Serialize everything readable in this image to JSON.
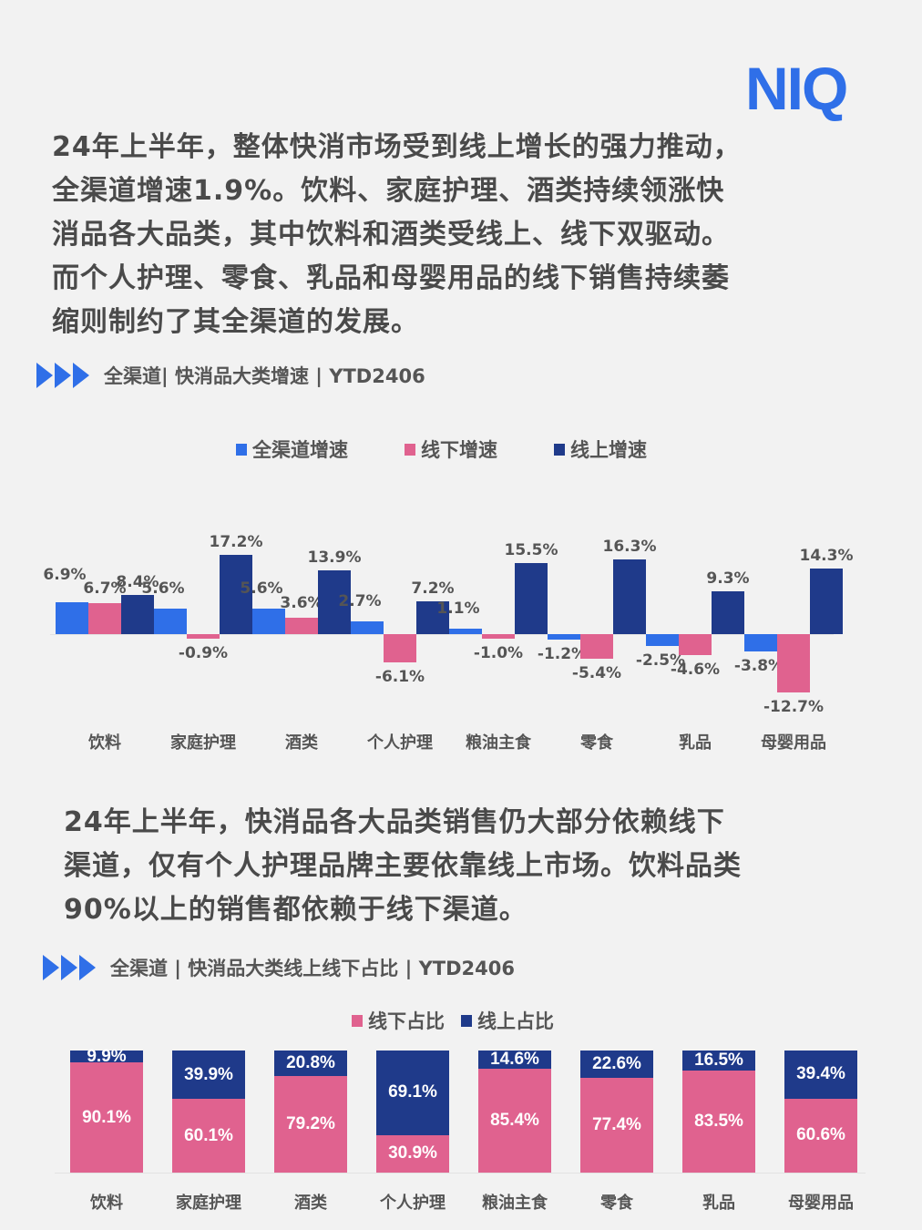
{
  "brand": {
    "logo_text": "NIQ",
    "logo_color": "#2f6fe8"
  },
  "intro_paragraph": [
    "24年上半年，整体快消市场受到线上增长的强力推动，",
    "全渠道增速1.9%。饮料、家庭护理、酒类持续领涨快",
    "消品各大品类，其中饮料和酒类受线上、线下双驱动。",
    "而个人护理、零食、乳品和母婴用品的线下销售持续萎",
    "缩则制约了其全渠道的发展。"
  ],
  "section1": {
    "title": "全渠道|  快消品大类增速 | YTD2406"
  },
  "section2_paragraph": [
    "24年上半年，快消品各大品类销售仍大部分依赖线下",
    "渠道，仅有个人护理品牌主要依靠线上市场。饮料品类",
    "90%以上的销售都依赖于线下渠道。"
  ],
  "section2": {
    "title": "全渠道 | 快消品大类线上线下占比 | YTD2406"
  },
  "colors": {
    "all_channel": "#2f6fe8",
    "offline": "#e0628f",
    "online": "#1f3a8a"
  },
  "chart_data": [
    {
      "type": "bar",
      "title": "全渠道|  快消品大类增速 | YTD2406",
      "xlabel": "",
      "ylabel": "",
      "categories": [
        "饮料",
        "家庭护理",
        "酒类",
        "个人护理",
        "粮油主食",
        "零食",
        "乳品",
        "母婴用品"
      ],
      "series": [
        {
          "name": "全渠道增速",
          "color": "#2f6fe8",
          "values": [
            6.9,
            5.6,
            5.6,
            2.7,
            1.1,
            -1.2,
            -2.5,
            -3.8
          ]
        },
        {
          "name": "线下增速",
          "color": "#e0628f",
          "values": [
            6.7,
            -0.9,
            3.6,
            -6.1,
            -1.0,
            -5.4,
            -4.6,
            -12.7
          ]
        },
        {
          "name": "线上增速",
          "color": "#1f3a8a",
          "values": [
            8.4,
            17.2,
            13.9,
            7.2,
            15.5,
            16.3,
            9.3,
            14.3
          ]
        }
      ],
      "labels": {
        "全渠道增速": [
          "6.9%",
          "5.6%",
          "5.6%",
          "2.7%",
          "1.1%",
          "-1.2%",
          "-2.5%",
          "-3.8%"
        ],
        "线下增速": [
          "6.7%",
          "-0.9%",
          "3.6%",
          "-6.1%",
          "-1.0%",
          "-5.4%",
          "-4.6%",
          "-12.7%"
        ],
        "线上增速": [
          "8.4%",
          "17.2%",
          "13.9%",
          "7.2%",
          "15.5%",
          "16.3%",
          "9.3%",
          "14.3%"
        ]
      },
      "legend_position": "top",
      "grid": false,
      "unit": "%"
    },
    {
      "type": "bar",
      "stacked": true,
      "percent_stacked": true,
      "title": "全渠道 | 快消品大类线上线下占比 | YTD2406",
      "xlabel": "",
      "ylabel": "",
      "categories": [
        "饮料",
        "家庭护理",
        "酒类",
        "个人护理",
        "粮油主食",
        "零食",
        "乳品",
        "母婴用品"
      ],
      "series": [
        {
          "name": "线下占比",
          "color": "#e0628f",
          "values": [
            90.1,
            60.1,
            79.2,
            30.9,
            85.4,
            77.4,
            83.5,
            60.6
          ]
        },
        {
          "name": "线上占比",
          "color": "#1f3a8a",
          "values": [
            9.9,
            39.9,
            20.8,
            69.1,
            14.6,
            22.6,
            16.5,
            39.4
          ]
        }
      ],
      "labels": {
        "线下占比": [
          "90.1%",
          "60.1%",
          "79.2%",
          "30.9%",
          "85.4%",
          "77.4%",
          "83.5%",
          "60.6%"
        ],
        "线上占比": [
          "9.9%",
          "39.9%",
          "20.8%",
          "69.1%",
          "14.6%",
          "22.6%",
          "16.5%",
          "39.4%"
        ]
      },
      "ylim": [
        0,
        100
      ],
      "legend_position": "top",
      "grid": false,
      "unit": "%"
    }
  ]
}
